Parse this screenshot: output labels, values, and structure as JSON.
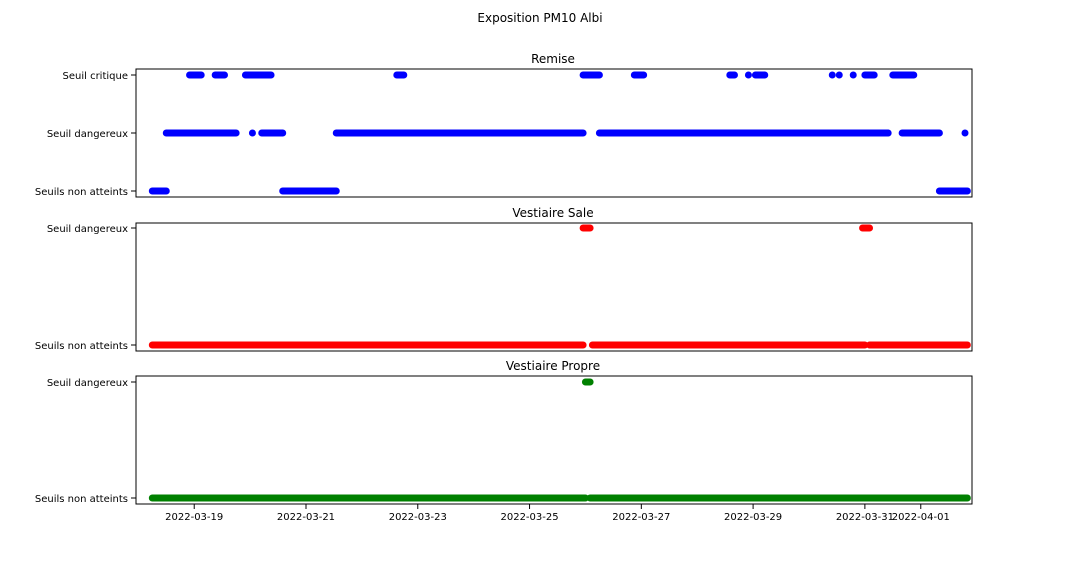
{
  "chart_data": {
    "type": "scatter",
    "title": "Exposition PM10 Albi",
    "x_axis": {
      "type": "date",
      "ticks": [
        "2022-03-19",
        "2022-03-21",
        "2022-03-23",
        "2022-03-25",
        "2022-03-27",
        "2022-03-29",
        "2022-03-31",
        "2022-04-01"
      ],
      "range": [
        "2022-03-17T23:00",
        "2022-04-01T22:00"
      ]
    },
    "panels": [
      {
        "title": "Remise",
        "color": "#0000ff",
        "levels": [
          "Seuils non atteints",
          "Seuil dangereux",
          "Seuil critique"
        ],
        "runs": [
          {
            "level": 0,
            "start": "2022-03-18T06:00",
            "end": "2022-03-18T12:00"
          },
          {
            "level": 1,
            "start": "2022-03-18T12:00",
            "end": "2022-03-19T18:00"
          },
          {
            "level": 2,
            "start": "2022-03-18T22:00",
            "end": "2022-03-19T03:00"
          },
          {
            "level": 2,
            "start": "2022-03-19T09:00",
            "end": "2022-03-19T13:00"
          },
          {
            "level": 2,
            "start": "2022-03-19T22:00",
            "end": "2022-03-20T09:00"
          },
          {
            "level": 1,
            "start": "2022-03-20T01:00",
            "end": "2022-03-20T01:00"
          },
          {
            "level": 1,
            "start": "2022-03-20T05:00",
            "end": "2022-03-20T14:00"
          },
          {
            "level": 0,
            "start": "2022-03-20T14:00",
            "end": "2022-03-21T13:00"
          },
          {
            "level": 1,
            "start": "2022-03-21T13:00",
            "end": "2022-03-25T23:00"
          },
          {
            "level": 2,
            "start": "2022-03-22T15:00",
            "end": "2022-03-22T18:00"
          },
          {
            "level": 2,
            "start": "2022-03-25T23:00",
            "end": "2022-03-26T06:00"
          },
          {
            "level": 1,
            "start": "2022-03-26T06:00",
            "end": "2022-03-28T11:00"
          },
          {
            "level": 2,
            "start": "2022-03-26T21:00",
            "end": "2022-03-27T01:00"
          },
          {
            "level": 2,
            "start": "2022-03-28T14:00",
            "end": "2022-03-28T16:00"
          },
          {
            "level": 2,
            "start": "2022-03-28T22:00",
            "end": "2022-03-28T22:00"
          },
          {
            "level": 2,
            "start": "2022-03-29T01:00",
            "end": "2022-03-29T05:00"
          },
          {
            "level": 1,
            "start": "2022-03-28T11:00",
            "end": "2022-03-31T10:00"
          },
          {
            "level": 2,
            "start": "2022-03-30T10:00",
            "end": "2022-03-30T10:00"
          },
          {
            "level": 2,
            "start": "2022-03-30T13:00",
            "end": "2022-03-30T13:00"
          },
          {
            "level": 2,
            "start": "2022-03-30T19:00",
            "end": "2022-03-30T19:00"
          },
          {
            "level": 2,
            "start": "2022-03-31T00:00",
            "end": "2022-03-31T04:00"
          },
          {
            "level": 2,
            "start": "2022-03-31T12:00",
            "end": "2022-03-31T21:00"
          },
          {
            "level": 1,
            "start": "2022-03-31T16:00",
            "end": "2022-04-01T08:00"
          },
          {
            "level": 0,
            "start": "2022-04-01T08:00",
            "end": "2022-04-01T20:00"
          },
          {
            "level": 1,
            "start": "2022-04-01T19:00",
            "end": "2022-04-01T19:00"
          }
        ]
      },
      {
        "title": "Vestiaire Sale",
        "color": "#ff0000",
        "levels": [
          "Seuils non atteints",
          "Seuil dangereux"
        ],
        "runs": [
          {
            "level": 0,
            "start": "2022-03-18T06:00",
            "end": "2022-03-25T23:00"
          },
          {
            "level": 1,
            "start": "2022-03-25T23:00",
            "end": "2022-03-26T02:00"
          },
          {
            "level": 0,
            "start": "2022-03-26T03:00",
            "end": "2022-03-31T00:00"
          },
          {
            "level": 1,
            "start": "2022-03-30T23:00",
            "end": "2022-03-31T02:00"
          },
          {
            "level": 0,
            "start": "2022-03-31T02:00",
            "end": "2022-04-01T20:00"
          }
        ]
      },
      {
        "title": "Vestiaire Propre",
        "color": "#008000",
        "levels": [
          "Seuils non atteints",
          "Seuil dangereux"
        ],
        "runs": [
          {
            "level": 0,
            "start": "2022-03-18T06:00",
            "end": "2022-03-26T00:00"
          },
          {
            "level": 1,
            "start": "2022-03-26T00:00",
            "end": "2022-03-26T02:00"
          },
          {
            "level": 0,
            "start": "2022-03-26T02:00",
            "end": "2022-04-01T20:00"
          }
        ]
      }
    ]
  }
}
